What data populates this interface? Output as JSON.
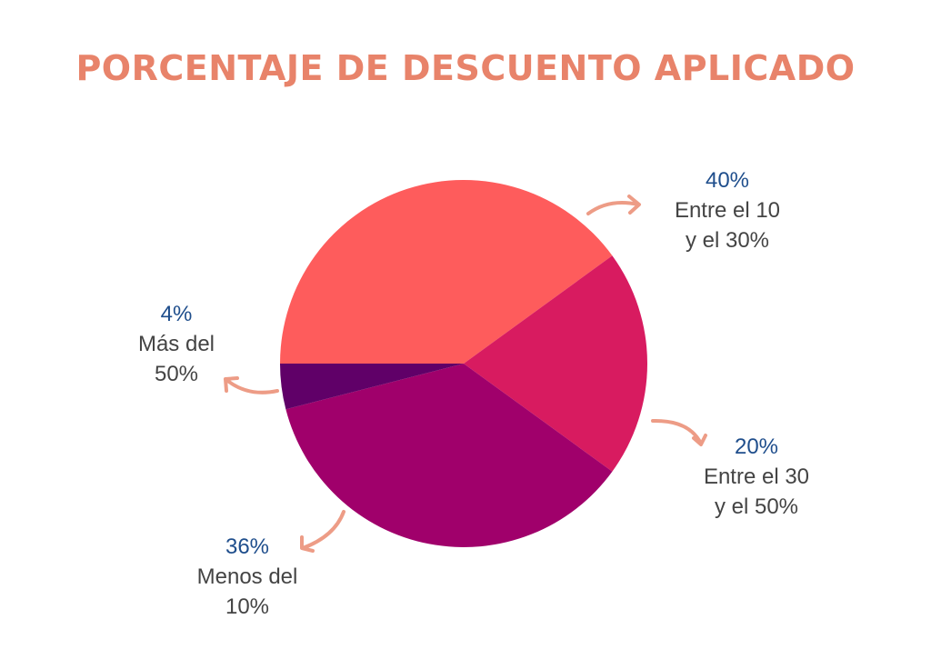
{
  "chart_data": {
    "type": "pie",
    "title": "PORCENTAJE DE DESCUENTO APLICADO",
    "slices": [
      {
        "label": "Entre el 10 y el 30%",
        "value": 40,
        "value_label": "40%",
        "color": "#fe5c5c"
      },
      {
        "label": "Entre el 30 y el 50%",
        "value": 20,
        "value_label": "20%",
        "color": "#d81b60"
      },
      {
        "label": "Menos del 10%",
        "value": 36,
        "value_label": "36%",
        "color": "#a0006b"
      },
      {
        "label": "Más del 50%",
        "value": 4,
        "value_label": "4%",
        "color": "#600068"
      }
    ],
    "legend": "none (callout labels with arrows)"
  },
  "colors": {
    "title": "#e8836a",
    "percentage_text": "#1f4e8c",
    "label_text": "#444444",
    "arrows": "#ed9c86"
  }
}
